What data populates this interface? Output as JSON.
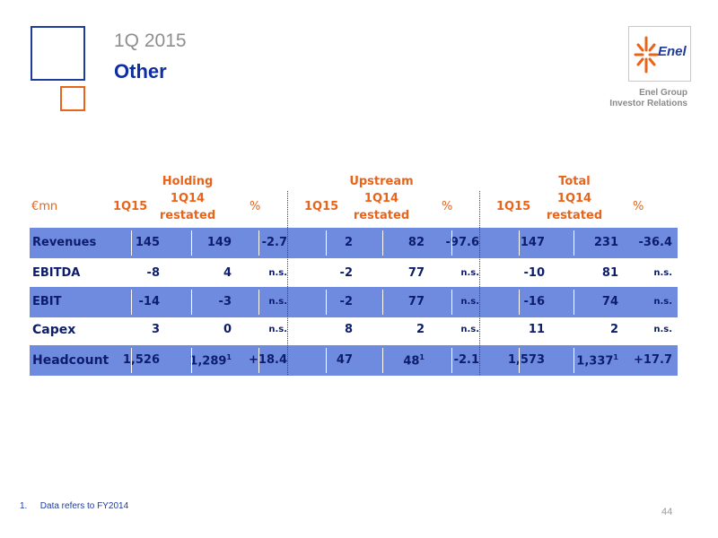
{
  "header": {
    "period": "1Q 2015",
    "title": "Other",
    "logo_text": "Enel",
    "group": "Enel Group",
    "department": "Investor Relations"
  },
  "table": {
    "unit_label": "€mn",
    "groups": [
      "Holding",
      "Upstream",
      "Total"
    ],
    "col_1q15": "1Q15",
    "col_1q14_line1": "1Q14",
    "col_1q14_line2": "restated",
    "col_pct": "%",
    "rows": [
      {
        "label": "Revenues",
        "h": [
          "145",
          "149",
          "-2.7"
        ],
        "u": [
          "2",
          "82",
          "-97.6"
        ],
        "t": [
          "147",
          "231",
          "-36.4"
        ]
      },
      {
        "label": "EBITDA",
        "h": [
          "-8",
          "4",
          "n.s."
        ],
        "u": [
          "-2",
          "77",
          "n.s."
        ],
        "t": [
          "-10",
          "81",
          "n.s."
        ]
      },
      {
        "label": "EBIT",
        "h": [
          "-14",
          "-3",
          "n.s."
        ],
        "u": [
          "-2",
          "77",
          "n.s."
        ],
        "t": [
          "-16",
          "74",
          "n.s."
        ]
      },
      {
        "label": "Capex",
        "h": [
          "3",
          "0",
          "n.s."
        ],
        "u": [
          "8",
          "2",
          "n.s."
        ],
        "t": [
          "11",
          "2",
          "n.s."
        ]
      },
      {
        "label": "Headcount",
        "h": [
          "1,526",
          "1,289",
          "+18.4"
        ],
        "u": [
          "47",
          "48",
          "-2.1"
        ],
        "t": [
          "1,573",
          "1,337",
          "+17.7"
        ]
      }
    ],
    "footnote_marker": "1"
  },
  "footnote": {
    "number": "1.",
    "text": "Data refers to FY2014"
  },
  "page_number": "44",
  "colors": {
    "accent_blue": "#1f3b9b",
    "accent_orange": "#e8641b",
    "row_band": "#6e8be0"
  }
}
